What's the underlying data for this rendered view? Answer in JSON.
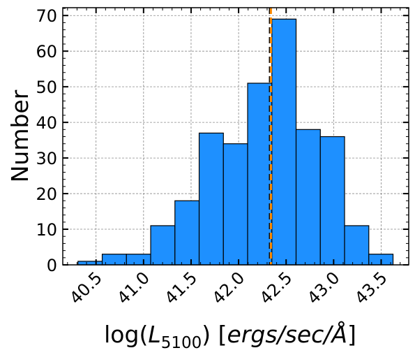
{
  "chart_data": {
    "type": "histogram",
    "xlabel": [
      "log(",
      "L",
      "5100",
      ") [",
      "ergs/sec/Å",
      "]"
    ],
    "ylabel": "Number",
    "bins": [
      40.31,
      40.565,
      40.82,
      41.075,
      41.33,
      41.585,
      41.84,
      42.095,
      42.35,
      42.605,
      42.86,
      43.115,
      43.37,
      43.625
    ],
    "values": [
      1,
      3,
      3,
      11,
      18,
      37,
      34,
      51,
      69,
      38,
      36,
      11,
      3
    ],
    "color": "#1e90ff",
    "edgecolor": "#000000",
    "vlines": [
      {
        "x": 42.33,
        "color": "#000000"
      },
      {
        "x": 42.34,
        "color": "#ff8c00"
      }
    ],
    "xlim": [
      40.15,
      43.79
    ],
    "xticks": [
      40.5,
      {
        "value": 41,
        "label": "41.0"
      },
      41.5,
      {
        "value": 42,
        "label": "42.0"
      },
      42.5,
      {
        "value": 43,
        "label": "43.0"
      },
      43.5
    ],
    "ylim": [
      0,
      72.2
    ],
    "yticks": [
      0,
      10,
      20,
      30,
      40,
      50,
      60,
      70
    ],
    "grid": true
  }
}
